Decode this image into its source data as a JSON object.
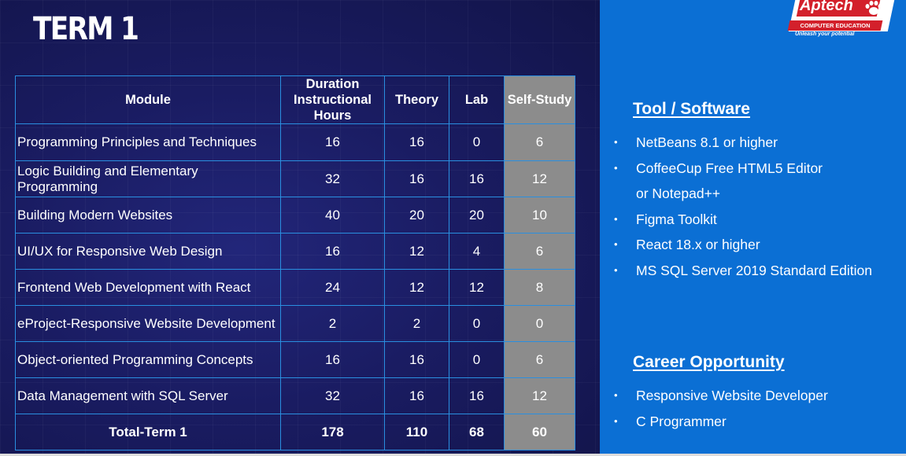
{
  "title": "TERM 1",
  "logo": {
    "wordmark": "Aptech",
    "subtitle": "COMPUTER EDUCATION",
    "tagline": "Unleash your potential",
    "brand_red": "#d3202b"
  },
  "table": {
    "headers": {
      "module": "Module",
      "duration": [
        "Duration",
        "Instructional",
        "Hours"
      ],
      "theory": "Theory",
      "lab": "Lab",
      "self_study": "Self-Study"
    },
    "rows": [
      {
        "module": [
          "Programming Principles and Techniques"
        ],
        "duration": "16",
        "theory": "16",
        "lab": "0",
        "self_study": "6"
      },
      {
        "module": [
          "Logic Building and Elementary",
          "Programming"
        ],
        "duration": "32",
        "theory": "16",
        "lab": "16",
        "self_study": "12"
      },
      {
        "module": [
          "Building Modern Websites"
        ],
        "duration": "40",
        "theory": "20",
        "lab": "20",
        "self_study": "10"
      },
      {
        "module": [
          "UI/UX for Responsive Web Design"
        ],
        "duration": "16",
        "theory": "12",
        "lab": "4",
        "self_study": "6"
      },
      {
        "module": [
          "Frontend Web Development with React"
        ],
        "duration": "24",
        "theory": "12",
        "lab": "12",
        "self_study": "8"
      },
      {
        "module": [
          "eProject-Responsive Website Development"
        ],
        "duration": "2",
        "theory": "2",
        "lab": "0",
        "self_study": "0"
      },
      {
        "module": [
          "Object-oriented Programming Concepts"
        ],
        "duration": "16",
        "theory": "16",
        "lab": "0",
        "self_study": "6"
      },
      {
        "module": [
          "Data Management with SQL Server"
        ],
        "duration": "32",
        "theory": "16",
        "lab": "16",
        "self_study": "12"
      }
    ],
    "total": {
      "label": "Total-Term 1",
      "duration": "178",
      "theory": "110",
      "lab": "68",
      "self_study": "60"
    }
  },
  "tools": {
    "heading": "Tool / Software",
    "items": [
      [
        "NetBeans 8.1 or higher"
      ],
      [
        "CoffeeCup Free HTML5 Editor",
        "or Notepad++"
      ],
      [
        "Figma Toolkit"
      ],
      [
        "React 18.x or higher"
      ],
      [
        "MS SQL Server 2019 Standard Edition"
      ]
    ]
  },
  "career": {
    "heading": "Career Opportunity",
    "items": [
      [
        "Responsive Website Developer"
      ],
      [
        "C Programmer"
      ]
    ]
  },
  "colors": {
    "left_bg": "#1a1c62",
    "right_bg": "#0b6fd4",
    "table_border": "#2a8fe0",
    "self_study_fill": "#8c8c8c"
  }
}
